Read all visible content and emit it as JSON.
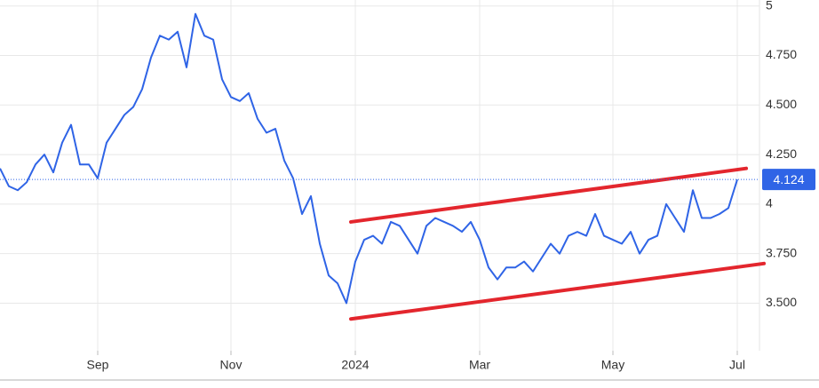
{
  "chart_data": {
    "type": "line",
    "color": "#2f64e6",
    "grid": true,
    "categories": [
      null,
      null,
      null,
      null,
      null,
      null,
      null,
      null,
      null,
      null,
      null,
      "Sep",
      null,
      null,
      null,
      null,
      null,
      null,
      null,
      null,
      null,
      null,
      null,
      null,
      null,
      null,
      "Nov",
      null,
      null,
      null,
      null,
      null,
      null,
      null,
      null,
      null,
      null,
      null,
      null,
      null,
      "2024",
      null,
      null,
      null,
      null,
      null,
      null,
      null,
      null,
      null,
      null,
      null,
      null,
      null,
      "Mar",
      null,
      null,
      null,
      null,
      null,
      null,
      null,
      null,
      null,
      null,
      null,
      null,
      null,
      null,
      "May",
      null,
      null,
      null,
      null,
      null,
      null,
      null,
      null,
      null,
      null,
      null,
      null,
      null,
      "Jul"
    ],
    "values": [
      4.18,
      4.09,
      4.07,
      4.11,
      4.2,
      4.25,
      4.16,
      4.31,
      4.4,
      4.2,
      4.2,
      4.13,
      4.31,
      4.38,
      4.45,
      4.49,
      4.58,
      4.74,
      4.85,
      4.83,
      4.87,
      4.69,
      4.96,
      4.85,
      4.83,
      4.63,
      4.54,
      4.52,
      4.56,
      4.43,
      4.36,
      4.38,
      4.22,
      4.13,
      3.95,
      4.04,
      3.8,
      3.64,
      3.6,
      3.5,
      3.71,
      3.82,
      3.84,
      3.8,
      3.91,
      3.89,
      3.82,
      3.75,
      3.89,
      3.93,
      3.91,
      3.89,
      3.86,
      3.91,
      3.82,
      3.68,
      3.62,
      3.68,
      3.68,
      3.71,
      3.66,
      3.73,
      3.8,
      3.75,
      3.84,
      3.86,
      3.84,
      3.95,
      3.84,
      3.82,
      3.8,
      3.86,
      3.75,
      3.82,
      3.84,
      4.0,
      3.93,
      3.86,
      4.07,
      3.93,
      3.93,
      3.95,
      3.98,
      4.124
    ],
    "ylim": [
      3.26,
      5.03
    ],
    "yticks": [
      {
        "value": 3.5,
        "label": "3.500"
      },
      {
        "value": 3.75,
        "label": "3.750"
      },
      4,
      {
        "value": 4.25,
        "label": "4.250"
      },
      {
        "value": 4.5,
        "label": "4.500"
      },
      {
        "value": 4.75,
        "label": "4.750"
      },
      5
    ],
    "trend_lines": [
      {
        "color": "#e3262d",
        "x": [
          39.5,
          84
        ],
        "values": [
          3.91,
          4.18
        ]
      },
      {
        "color": "#e3262d",
        "x": [
          39.5,
          86
        ],
        "values": [
          3.42,
          3.7
        ]
      }
    ]
  }
}
